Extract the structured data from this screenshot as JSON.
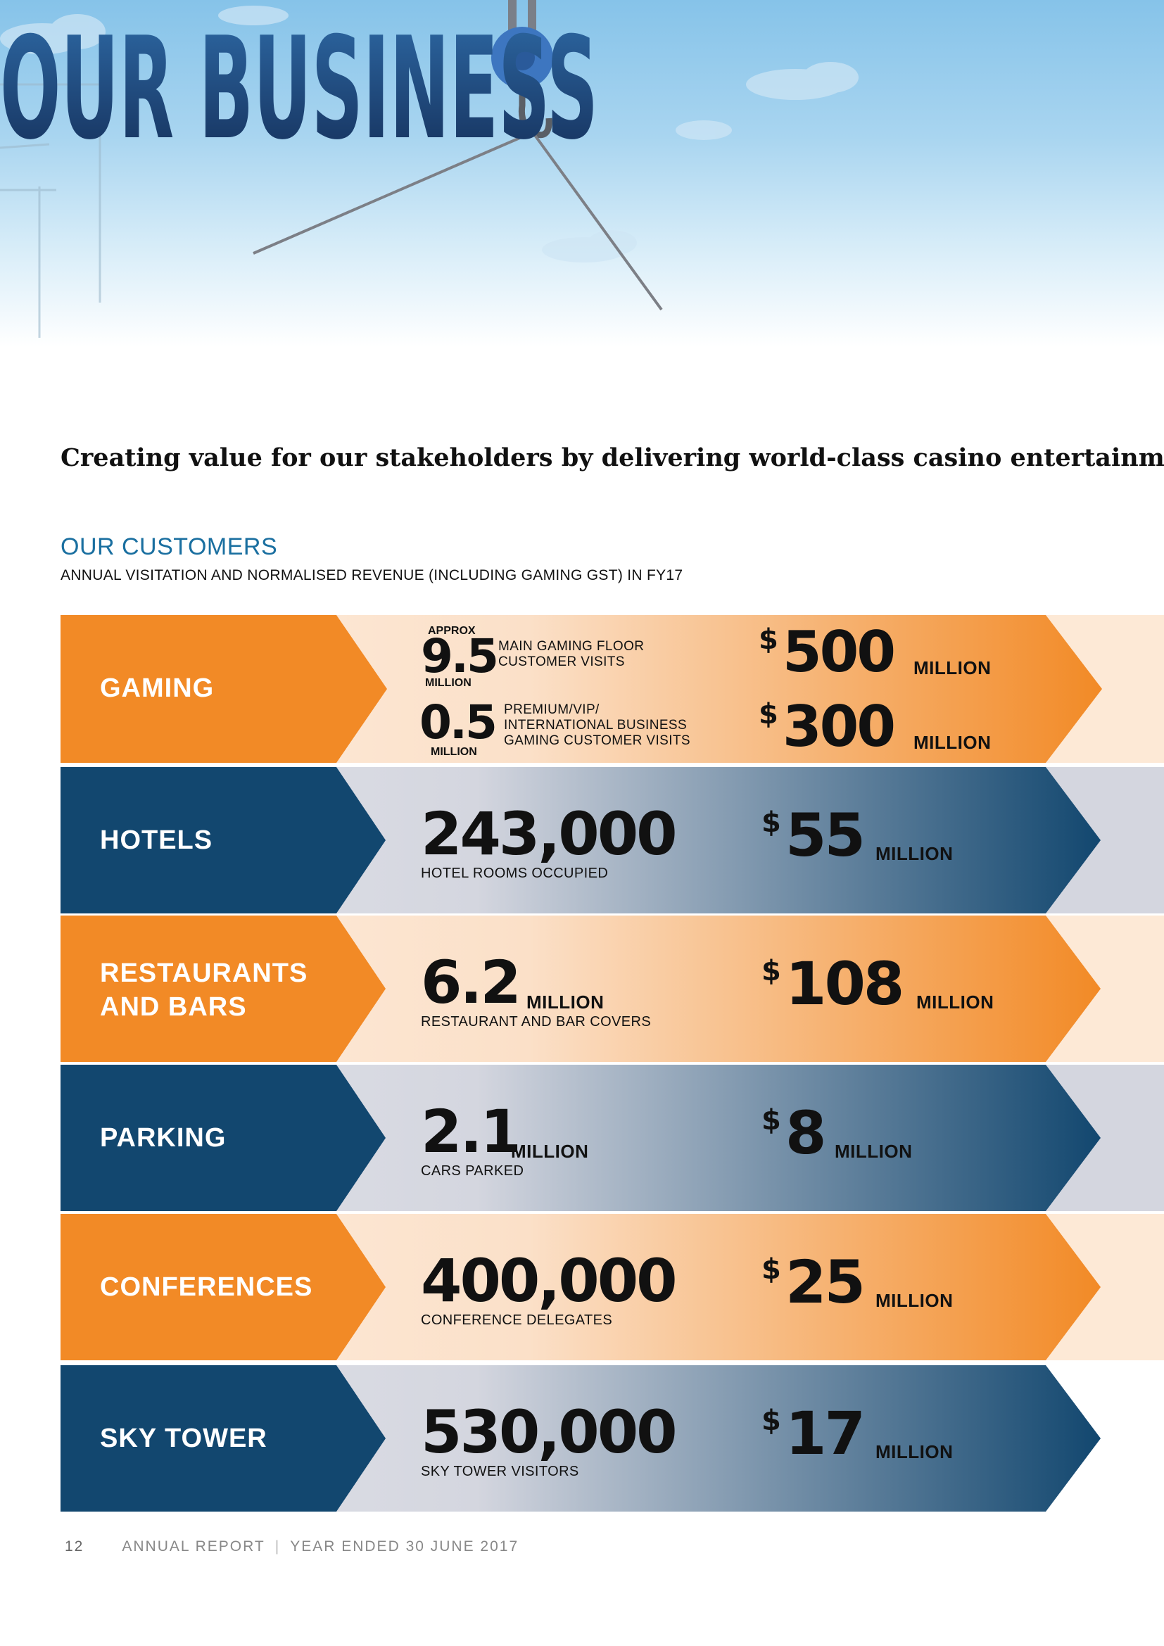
{
  "header": {
    "title": "OUR BUSINESS",
    "tagline": "Creating value for our stakeholders by delivering world-class casino entertainment"
  },
  "section": {
    "heading": "OUR CUSTOMERS",
    "subheading": "ANNUAL VISITATION AND NORMALISED REVENUE (INCLUDING GAMING GST) IN FY17"
  },
  "colors": {
    "orange": "#f28a26",
    "navy": "#12476f",
    "heading_blue": "#1a6fa0"
  },
  "gaming": {
    "label": "GAMING",
    "main_prefix": "APPROX",
    "main_value": "9.5",
    "main_unit": "MILLION",
    "main_desc_1": "MAIN GAMING FLOOR",
    "main_desc_2": "CUSTOMER VISITS",
    "vip_value": "0.5",
    "vip_unit": "MILLION",
    "vip_desc_1": "PREMIUM/VIP/",
    "vip_desc_2": "INTERNATIONAL BUSINESS",
    "vip_desc_3": "GAMING CUSTOMER VISITS",
    "rev1_currency": "$",
    "rev1_value": "500",
    "rev1_unit": "MILLION",
    "rev2_currency": "$",
    "rev2_value": "300",
    "rev2_unit": "MILLION"
  },
  "rows": [
    {
      "label_1": "HOTELS",
      "label_2": "",
      "value": "243,000",
      "unit": "",
      "caption": "HOTEL ROOMS OCCUPIED",
      "currency": "$",
      "revenue": "55",
      "rev_unit": "MILLION"
    },
    {
      "label_1": "RESTAURANTS",
      "label_2": "AND BARS",
      "value": "6.2",
      "unit": "MILLION",
      "caption": "RESTAURANT AND BAR COVERS",
      "currency": "$",
      "revenue": "108",
      "rev_unit": "MILLION"
    },
    {
      "label_1": "PARKING",
      "label_2": "",
      "value": "2.1",
      "unit": "MILLION",
      "caption": "CARS PARKED",
      "currency": "$",
      "revenue": "8",
      "rev_unit": "MILLION"
    },
    {
      "label_1": "CONFERENCES",
      "label_2": "",
      "value": "400,000",
      "unit": "",
      "caption": "CONFERENCE DELEGATES",
      "currency": "$",
      "revenue": "25",
      "rev_unit": "MILLION"
    },
    {
      "label_1": "SKY TOWER",
      "label_2": "",
      "value": "530,000",
      "unit": "",
      "caption": "SKY TOWER VISITORS",
      "currency": "$",
      "revenue": "17",
      "rev_unit": "MILLION"
    }
  ],
  "footer": {
    "page_number": "12",
    "doc": "ANNUAL REPORT",
    "period": "YEAR ENDED 30 JUNE 2017"
  }
}
